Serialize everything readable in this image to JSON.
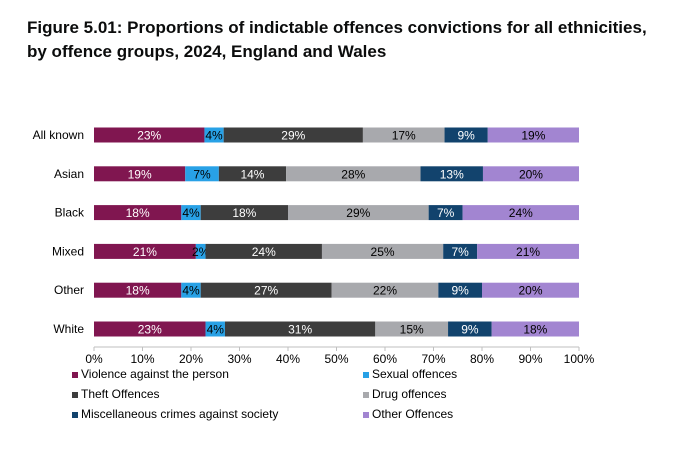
{
  "title": "Figure 5.01: Proportions of indictable offences convictions for all ethnicities, by offence groups, 2024, England and Wales",
  "chart_data": {
    "type": "bar",
    "orientation": "horizontal",
    "stacked": true,
    "categories": [
      "All known",
      "Asian",
      "Black",
      "Mixed",
      "Other",
      "White"
    ],
    "x_ticks": [
      "0%",
      "10%",
      "20%",
      "30%",
      "40%",
      "50%",
      "60%",
      "70%",
      "80%",
      "90%",
      "100%"
    ],
    "xlim": [
      0,
      100
    ],
    "grid": false,
    "legend_position": "bottom",
    "series": [
      {
        "name": "Violence against the person",
        "color": "#801650",
        "label_color": "#ffffff",
        "values": [
          23,
          19,
          18,
          21,
          18,
          23
        ]
      },
      {
        "name": "Sexual offences",
        "color": "#28a1e6",
        "label_color": "#000000",
        "values": [
          4,
          7,
          4,
          2,
          4,
          4
        ]
      },
      {
        "name": "Theft Offences",
        "color": "#3d3d3d",
        "label_color": "#ffffff",
        "values": [
          29,
          14,
          18,
          24,
          27,
          31
        ]
      },
      {
        "name": "Drug offences",
        "color": "#a8a9ad",
        "label_color": "#000000",
        "values": [
          17,
          28,
          29,
          25,
          22,
          15
        ]
      },
      {
        "name": "Miscellaneous crimes against society",
        "color": "#12436d",
        "label_color": "#ffffff",
        "values": [
          9,
          13,
          7,
          7,
          9,
          9
        ]
      },
      {
        "name": "Other Offences",
        "color": "#a285d1",
        "label_color": "#000000",
        "values": [
          19,
          20,
          24,
          21,
          20,
          18
        ]
      }
    ],
    "value_suffix": "%"
  }
}
